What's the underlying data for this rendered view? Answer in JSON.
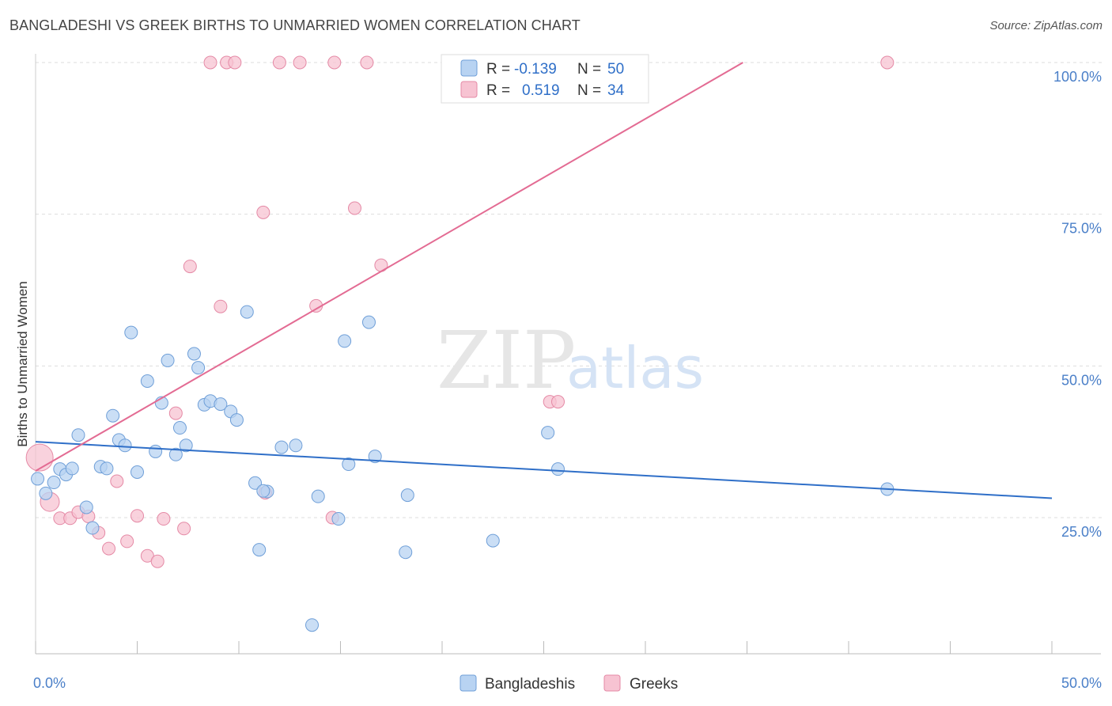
{
  "header": {
    "title": "BANGLADESHI VS GREEK BIRTHS TO UNMARRIED WOMEN CORRELATION CHART",
    "source": "Source: ZipAtlas.com"
  },
  "watermark": {
    "zip": "ZIP",
    "atlas": "atlas"
  },
  "legend_top": [
    {
      "r_label": "R =",
      "r_value": "-0.139",
      "n_label": "N =",
      "n_value": "50"
    },
    {
      "r_label": "R =",
      "r_value": "0.519",
      "n_label": "N =",
      "n_value": "34"
    }
  ],
  "legend_bottom": [
    "Bangladeshis",
    "Greeks"
  ],
  "colors": {
    "blue_fill": "#b8d3f2",
    "blue_stroke": "#6f9fd8",
    "blue_line": "#2f6fc8",
    "pink_fill": "#f7c3d2",
    "pink_stroke": "#e58aa6",
    "pink_line": "#e36b93",
    "grid": "#dddddd",
    "tick_text": "#4a7fc8"
  },
  "chart_data": {
    "type": "scatter",
    "title": "BANGLADESHI VS GREEK BIRTHS TO UNMARRIED WOMEN CORRELATION CHART",
    "xlabel": "",
    "ylabel": "Births to Unmarried Women",
    "xlim": [
      0,
      50
    ],
    "ylim": [
      0,
      102
    ],
    "x_ticks_labels": [
      "0.0%",
      "50.0%"
    ],
    "y_ticks": [
      25,
      50,
      75,
      100
    ],
    "y_ticks_labels": [
      "25.0%",
      "50.0%",
      "75.0%",
      "100.0%"
    ],
    "grid": true,
    "legend_position": "top-center",
    "series": [
      {
        "name": "Bangladeshis",
        "color": "#6f9fd8",
        "r": -0.139,
        "n": 50,
        "trend": {
          "x": [
            0,
            50
          ],
          "y": [
            37.5,
            28.2
          ]
        },
        "points": [
          [
            0.1,
            31.4
          ],
          [
            0.5,
            29.0
          ],
          [
            0.9,
            30.8
          ],
          [
            1.2,
            33.0
          ],
          [
            1.5,
            32.1
          ],
          [
            1.8,
            33.1
          ],
          [
            2.1,
            38.6
          ],
          [
            2.5,
            26.7
          ],
          [
            2.8,
            23.3
          ],
          [
            3.2,
            33.4
          ],
          [
            3.5,
            33.1
          ],
          [
            3.8,
            41.8
          ],
          [
            4.1,
            37.8
          ],
          [
            4.4,
            36.9
          ],
          [
            4.7,
            55.5
          ],
          [
            5.0,
            32.5
          ],
          [
            5.5,
            47.5
          ],
          [
            5.9,
            35.9
          ],
          [
            6.2,
            43.9
          ],
          [
            6.5,
            50.9
          ],
          [
            6.9,
            35.4
          ],
          [
            7.1,
            39.8
          ],
          [
            7.4,
            36.9
          ],
          [
            7.8,
            52.0
          ],
          [
            8.0,
            49.7
          ],
          [
            8.3,
            43.6
          ],
          [
            8.6,
            44.2
          ],
          [
            9.1,
            43.7
          ],
          [
            9.6,
            42.5
          ],
          [
            9.9,
            41.1
          ],
          [
            10.4,
            58.9
          ],
          [
            10.8,
            30.7
          ],
          [
            11.0,
            19.7
          ],
          [
            11.4,
            29.3
          ],
          [
            12.1,
            36.6
          ],
          [
            12.8,
            36.9
          ],
          [
            13.6,
            7.3
          ],
          [
            13.9,
            28.5
          ],
          [
            14.9,
            24.8
          ],
          [
            15.2,
            54.1
          ],
          [
            15.4,
            33.8
          ],
          [
            16.4,
            57.2
          ],
          [
            16.7,
            35.1
          ],
          [
            18.2,
            19.3
          ],
          [
            18.3,
            28.7
          ],
          [
            22.5,
            21.2
          ],
          [
            25.2,
            39.0
          ],
          [
            25.7,
            33.0
          ],
          [
            41.9,
            29.7
          ],
          [
            11.2,
            29.4
          ]
        ]
      },
      {
        "name": "Greeks",
        "color": "#e58aa6",
        "r": 0.519,
        "n": 34,
        "trend": {
          "x": [
            0,
            34.8
          ],
          "y": [
            32.7,
            100.0
          ]
        },
        "points": [
          [
            0.2,
            34.9
          ],
          [
            0.7,
            27.6
          ],
          [
            1.2,
            24.9
          ],
          [
            1.7,
            24.9
          ],
          [
            2.1,
            25.9
          ],
          [
            2.6,
            25.2
          ],
          [
            3.1,
            22.5
          ],
          [
            3.6,
            19.9
          ],
          [
            4.0,
            31.0
          ],
          [
            4.5,
            21.1
          ],
          [
            5.0,
            25.3
          ],
          [
            5.5,
            18.7
          ],
          [
            6.0,
            17.8
          ],
          [
            6.3,
            24.8
          ],
          [
            6.9,
            42.2
          ],
          [
            7.3,
            23.2
          ],
          [
            7.6,
            66.4
          ],
          [
            8.6,
            100.0
          ],
          [
            9.1,
            59.8
          ],
          [
            9.4,
            100.0
          ],
          [
            9.8,
            100.0
          ],
          [
            11.2,
            75.3
          ],
          [
            11.3,
            29.1
          ],
          [
            12.0,
            100.0
          ],
          [
            13.0,
            100.0
          ],
          [
            13.8,
            59.9
          ],
          [
            14.6,
            25.0
          ],
          [
            14.7,
            100.0
          ],
          [
            15.7,
            76.0
          ],
          [
            16.3,
            100.0
          ],
          [
            17.0,
            66.6
          ],
          [
            25.3,
            44.1
          ],
          [
            25.7,
            44.1
          ],
          [
            41.9,
            100.0
          ]
        ]
      }
    ]
  }
}
